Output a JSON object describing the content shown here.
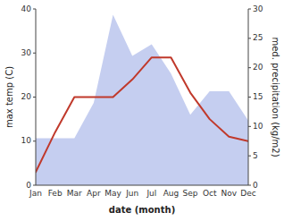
{
  "chart_data": {
    "type": "line",
    "xlabel": "date (month)",
    "ylabel": "max temp (C)",
    "y2label": "med. precipitation (kg/m2)",
    "categories": [
      "Jan",
      "Feb",
      "Mar",
      "Apr",
      "May",
      "Jun",
      "Jul",
      "Aug",
      "Sep",
      "Oct",
      "Nov",
      "Dec"
    ],
    "series": [
      {
        "type": "area",
        "axis": "y2",
        "color": "#c5cef0",
        "values": [
          8,
          8,
          8,
          14,
          29,
          22,
          24,
          19,
          12,
          16,
          16,
          11
        ]
      },
      {
        "type": "line",
        "color": "#c0392b",
        "values": [
          3,
          12,
          20,
          20,
          20,
          24,
          29,
          29,
          21,
          15,
          11,
          10
        ]
      }
    ],
    "ylim": [
      0,
      40
    ],
    "yticks": [
      0,
      10,
      20,
      30,
      40
    ],
    "y2lim": [
      0,
      30
    ],
    "y2ticks": [
      0,
      5,
      10,
      15,
      20,
      25,
      30
    ],
    "grid": false
  }
}
